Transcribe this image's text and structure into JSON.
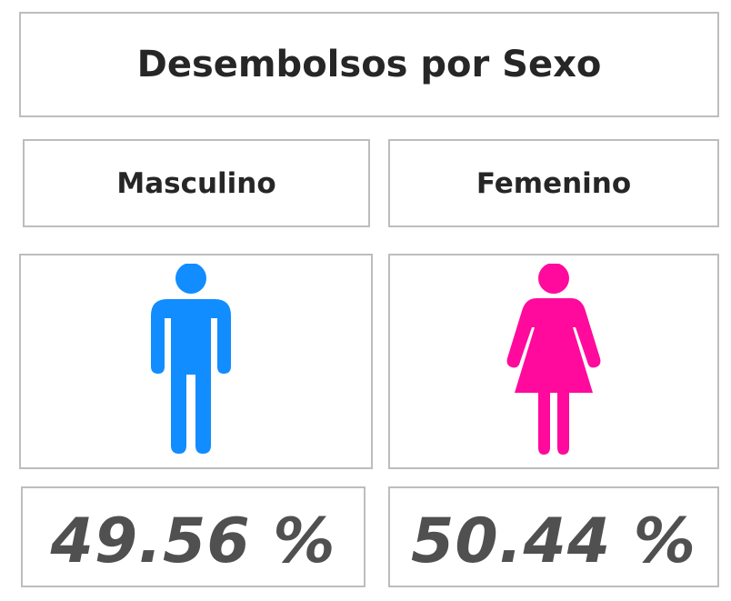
{
  "title": "Desembolsos por Sexo",
  "male": {
    "label": "Masculino",
    "percent": "49.56 %",
    "icon": "male-person-icon",
    "color": "#118dff"
  },
  "female": {
    "label": "Femenino",
    "percent": "50.44 %",
    "icon": "female-person-icon",
    "color": "#ff0a9c"
  }
}
